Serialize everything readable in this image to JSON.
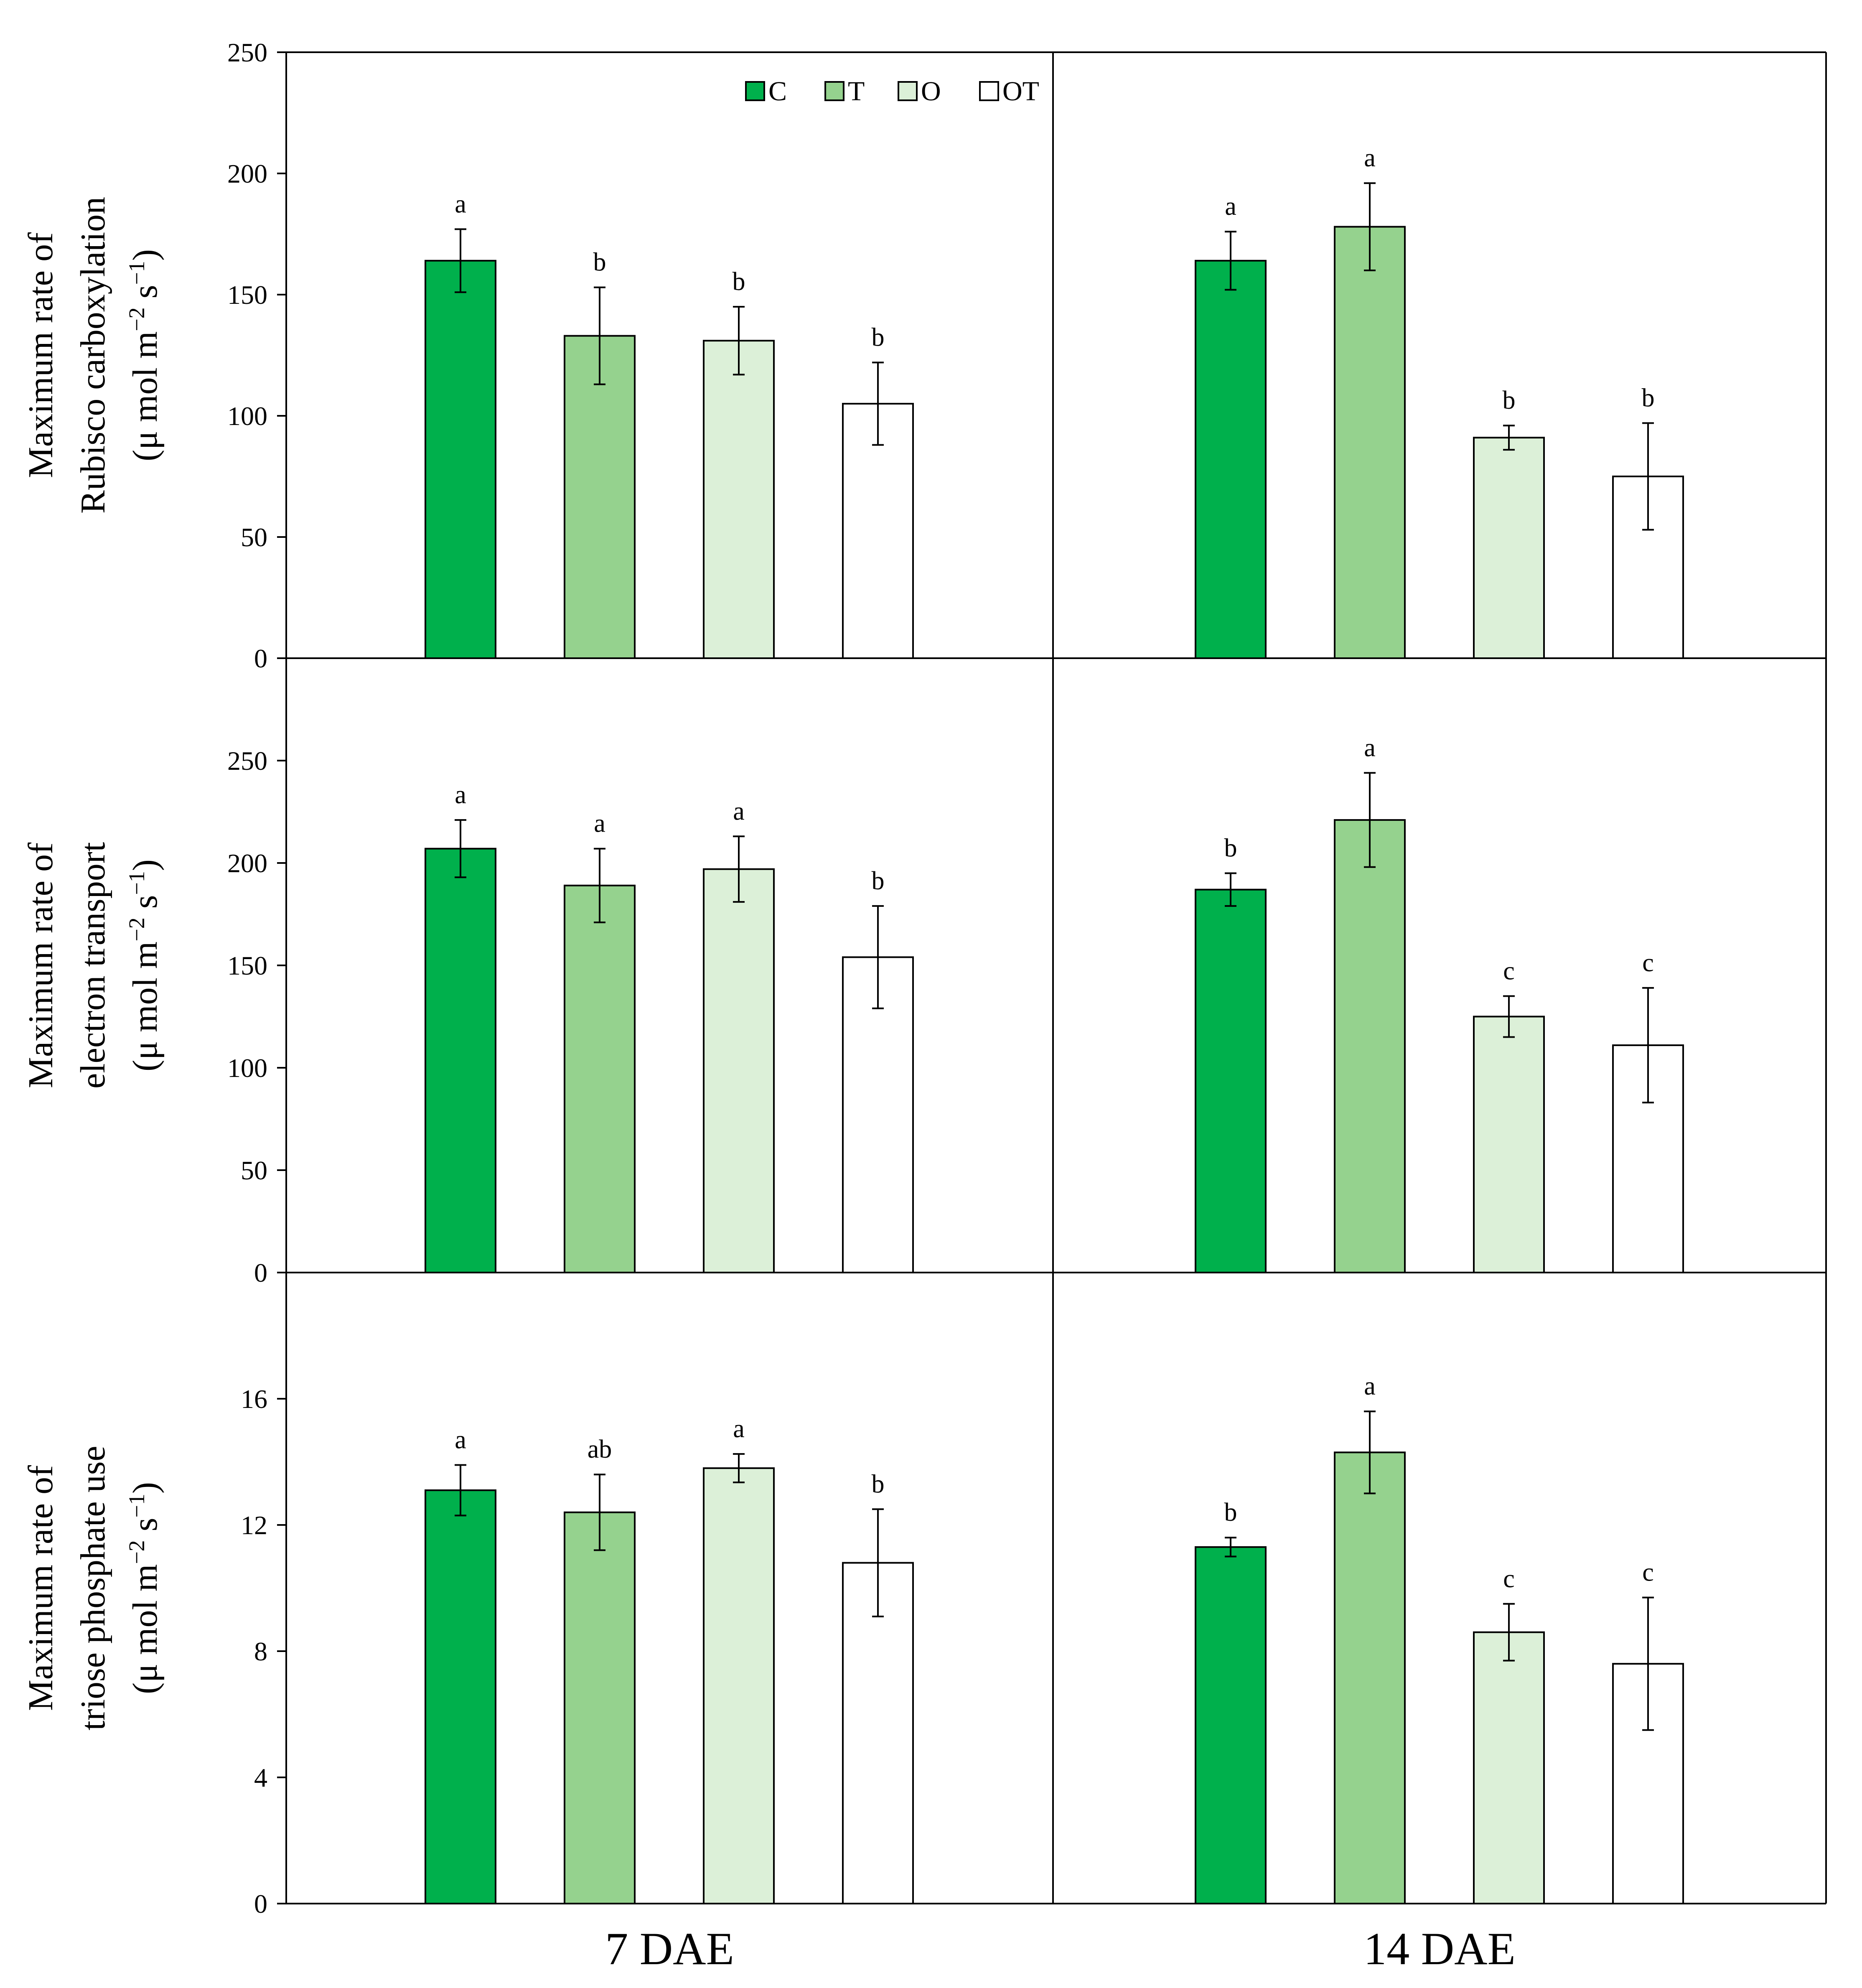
{
  "colors": {
    "C": "#00b04c",
    "T": "#95d28e",
    "O": "#dcf0d8",
    "OT": "#ffffff",
    "stroke": "#000000"
  },
  "legend": {
    "placement": "top-right of first panel",
    "items": [
      {
        "key": "C",
        "label": "C"
      },
      {
        "key": "T",
        "label": "T"
      },
      {
        "key": "O",
        "label": "O"
      },
      {
        "key": "OT",
        "label": "OT"
      }
    ]
  },
  "x_group_labels": [
    "7 DAE",
    "14 DAE"
  ],
  "chart_data": [
    {
      "type": "bar",
      "row": 0,
      "ylabel_lines": [
        "Maximum rate of",
        "Rubisco carboxylation"
      ],
      "yunit": {
        "prefix": "(μ mol m",
        "sup1": "−2",
        "mid": " s",
        "sup2": "−1",
        "suffix": ")"
      },
      "ylim": [
        0,
        250
      ],
      "yticks": [
        0,
        50,
        100,
        150,
        200,
        250
      ],
      "groups": [
        {
          "name": "7 DAE",
          "bars": [
            {
              "series": "C",
              "value": 164,
              "error": 13,
              "letter": "a"
            },
            {
              "series": "T",
              "value": 133,
              "error": 20,
              "letter": "b"
            },
            {
              "series": "O",
              "value": 131,
              "error": 14,
              "letter": "b"
            },
            {
              "series": "OT",
              "value": 105,
              "error": 17,
              "letter": "b"
            }
          ]
        },
        {
          "name": "14 DAE",
          "bars": [
            {
              "series": "C",
              "value": 164,
              "error": 12,
              "letter": "a"
            },
            {
              "series": "T",
              "value": 178,
              "error": 18,
              "letter": "a"
            },
            {
              "series": "O",
              "value": 91,
              "error": 5,
              "letter": "b"
            },
            {
              "series": "OT",
              "value": 75,
              "error": 22,
              "letter": "b"
            }
          ]
        }
      ]
    },
    {
      "type": "bar",
      "row": 1,
      "ylabel_lines": [
        "Maximum rate of",
        "electron transport"
      ],
      "yunit": {
        "prefix": "(μ mol m",
        "sup1": "−2",
        "mid": " s",
        "sup2": "−1",
        "suffix": ")"
      },
      "ylim": [
        0,
        300
      ],
      "yticks": [
        0,
        50,
        100,
        150,
        200,
        250
      ],
      "groups": [
        {
          "name": "7 DAE",
          "bars": [
            {
              "series": "C",
              "value": 207,
              "error": 14,
              "letter": "a"
            },
            {
              "series": "T",
              "value": 189,
              "error": 18,
              "letter": "a"
            },
            {
              "series": "O",
              "value": 197,
              "error": 16,
              "letter": "a"
            },
            {
              "series": "OT",
              "value": 154,
              "error": 25,
              "letter": "b"
            }
          ]
        },
        {
          "name": "14 DAE",
          "bars": [
            {
              "series": "C",
              "value": 187,
              "error": 8,
              "letter": "b"
            },
            {
              "series": "T",
              "value": 221,
              "error": 23,
              "letter": "a"
            },
            {
              "series": "O",
              "value": 125,
              "error": 10,
              "letter": "c"
            },
            {
              "series": "OT",
              "value": 111,
              "error": 28,
              "letter": "c"
            }
          ]
        }
      ]
    },
    {
      "type": "bar",
      "row": 2,
      "ylabel_lines": [
        "Maximum rate of",
        "triose phosphate use"
      ],
      "yunit": {
        "prefix": "(μ mol m",
        "sup1": "−2",
        "mid": " s",
        "sup2": "−1",
        "suffix": ")"
      },
      "ylim": [
        0,
        20
      ],
      "yticks": [
        0,
        4,
        8,
        12,
        16
      ],
      "groups": [
        {
          "name": "7 DAE",
          "bars": [
            {
              "series": "C",
              "value": 13.1,
              "error": 0.8,
              "letter": "a"
            },
            {
              "series": "T",
              "value": 12.4,
              "error": 1.2,
              "letter": "ab"
            },
            {
              "series": "O",
              "value": 13.8,
              "error": 0.45,
              "letter": "a"
            },
            {
              "series": "OT",
              "value": 10.8,
              "error": 1.7,
              "letter": "b"
            }
          ]
        },
        {
          "name": "14 DAE",
          "bars": [
            {
              "series": "C",
              "value": 11.3,
              "error": 0.3,
              "letter": "b"
            },
            {
              "series": "T",
              "value": 14.3,
              "error": 1.3,
              "letter": "a"
            },
            {
              "series": "O",
              "value": 8.6,
              "error": 0.9,
              "letter": "c"
            },
            {
              "series": "OT",
              "value": 7.6,
              "error": 2.1,
              "letter": "c"
            }
          ]
        }
      ]
    }
  ]
}
